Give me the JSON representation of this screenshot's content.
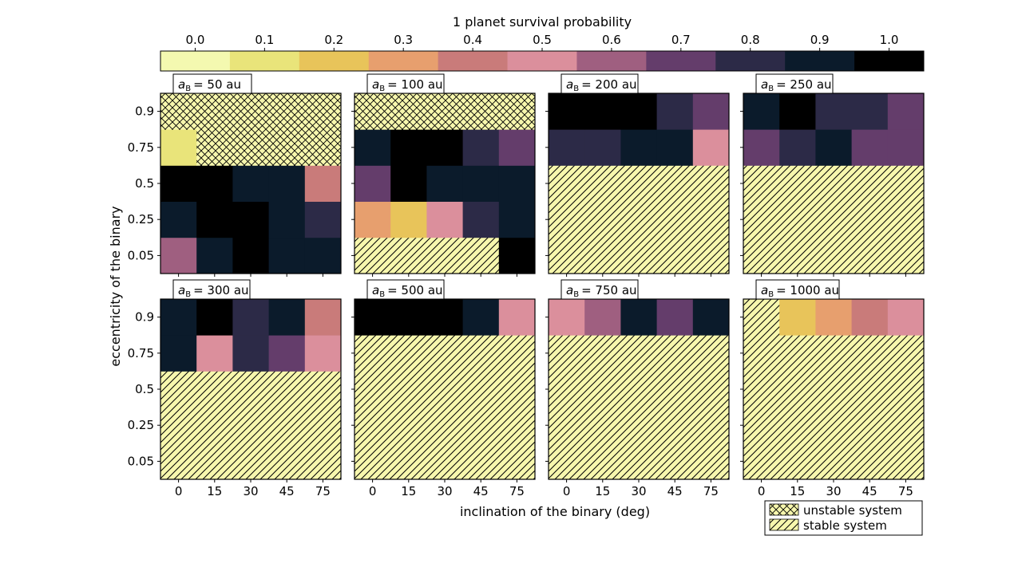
{
  "chart_data": {
    "type": "heatmap",
    "colorbar": {
      "label": "1 planet survival probability",
      "ticks": [
        "0.0",
        "0.1",
        "0.2",
        "0.3",
        "0.4",
        "0.5",
        "0.6",
        "0.7",
        "0.8",
        "0.9",
        "1.0"
      ],
      "colors": [
        "#f4f9b0",
        "#e9e47a",
        "#e8c45a",
        "#e79f6e",
        "#c97b7a",
        "#db8f9c",
        "#9f5f80",
        "#643d6b",
        "#2c2a47",
        "#0b1b2b",
        "#000000"
      ],
      "range": [
        0.0,
        1.0
      ]
    },
    "xlabel": "inclination of the binary (deg)",
    "ylabel": "eccentricity of the binary",
    "x_ticks": [
      "0",
      "15",
      "30",
      "45",
      "75"
    ],
    "y_ticks": [
      "0.05",
      "0.25",
      "0.5",
      "0.75",
      "0.9"
    ],
    "hatch_fill": "#f7f7ad",
    "legend": {
      "placement": "bottom-right",
      "entries": [
        {
          "label": "unstable system",
          "hatch": "crosshatch"
        },
        {
          "label": "stable system",
          "hatch": "diagonal"
        }
      ]
    },
    "panels_note_rows_order": "y_ticks",
    "panels": [
      {
        "title_prefix": "a",
        "title_sub": "B",
        "title_rest": "=  50 au",
        "grid": [
          [
            0.6,
            0.9,
            1.0,
            0.9,
            0.9
          ],
          [
            0.9,
            1.0,
            1.0,
            0.9,
            0.8
          ],
          [
            1.0,
            1.0,
            0.9,
            0.9,
            0.4
          ],
          [
            0.1,
            "unstable",
            "unstable",
            "unstable",
            "unstable"
          ],
          [
            "unstable",
            "unstable",
            "unstable",
            "unstable",
            "unstable"
          ]
        ]
      },
      {
        "title_prefix": "a",
        "title_sub": "B",
        "title_rest": "=  100 au",
        "grid": [
          [
            "stable",
            "stable",
            "stable",
            "stable",
            1.0
          ],
          [
            0.3,
            0.2,
            0.5,
            0.8,
            0.9
          ],
          [
            0.7,
            1.0,
            0.9,
            0.9,
            0.9
          ],
          [
            0.9,
            1.0,
            1.0,
            0.8,
            0.7
          ],
          [
            "unstable",
            "unstable",
            "unstable",
            "unstable",
            "unstable"
          ]
        ]
      },
      {
        "title_prefix": "a",
        "title_sub": "B",
        "title_rest": "=  200 au",
        "grid": [
          [
            "stable",
            "stable",
            "stable",
            "stable",
            "stable"
          ],
          [
            "stable",
            "stable",
            "stable",
            "stable",
            "stable"
          ],
          [
            "stable",
            "stable",
            "stable",
            "stable",
            "stable"
          ],
          [
            0.8,
            0.8,
            0.9,
            0.9,
            0.5
          ],
          [
            1.0,
            1.0,
            1.0,
            0.8,
            0.7
          ]
        ]
      },
      {
        "title_prefix": "a",
        "title_sub": "B",
        "title_rest": "=  250 au",
        "grid": [
          [
            "stable",
            "stable",
            "stable",
            "stable",
            "stable"
          ],
          [
            "stable",
            "stable",
            "stable",
            "stable",
            "stable"
          ],
          [
            "stable",
            "stable",
            "stable",
            "stable",
            "stable"
          ],
          [
            0.7,
            0.8,
            0.9,
            0.7,
            0.7
          ],
          [
            0.9,
            1.0,
            0.8,
            0.8,
            0.7
          ]
        ]
      },
      {
        "title_prefix": "a",
        "title_sub": "B",
        "title_rest": "=  300 au",
        "grid": [
          [
            "stable",
            "stable",
            "stable",
            "stable",
            "stable"
          ],
          [
            "stable",
            "stable",
            "stable",
            "stable",
            "stable"
          ],
          [
            "stable",
            "stable",
            "stable",
            "stable",
            "stable"
          ],
          [
            0.9,
            0.5,
            0.8,
            0.7,
            0.5
          ],
          [
            0.9,
            1.0,
            0.8,
            0.9,
            0.4
          ]
        ]
      },
      {
        "title_prefix": "a",
        "title_sub": "B",
        "title_rest": "=  500 au",
        "grid": [
          [
            "stable",
            "stable",
            "stable",
            "stable",
            "stable"
          ],
          [
            "stable",
            "stable",
            "stable",
            "stable",
            "stable"
          ],
          [
            "stable",
            "stable",
            "stable",
            "stable",
            "stable"
          ],
          [
            "stable",
            "stable",
            "stable",
            "stable",
            "stable"
          ],
          [
            1.0,
            1.0,
            1.0,
            0.9,
            0.5
          ]
        ]
      },
      {
        "title_prefix": "a",
        "title_sub": "B",
        "title_rest": "=  750 au",
        "grid": [
          [
            "stable",
            "stable",
            "stable",
            "stable",
            "stable"
          ],
          [
            "stable",
            "stable",
            "stable",
            "stable",
            "stable"
          ],
          [
            "stable",
            "stable",
            "stable",
            "stable",
            "stable"
          ],
          [
            "stable",
            "stable",
            "stable",
            "stable",
            "stable"
          ],
          [
            0.5,
            0.6,
            0.9,
            0.7,
            0.9
          ]
        ]
      },
      {
        "title_prefix": "a",
        "title_sub": "B",
        "title_rest": "=  1000 au",
        "grid": [
          [
            "stable",
            "stable",
            "stable",
            "stable",
            "stable"
          ],
          [
            "stable",
            "stable",
            "stable",
            "stable",
            "stable"
          ],
          [
            "stable",
            "stable",
            "stable",
            "stable",
            "stable"
          ],
          [
            "stable",
            "stable",
            "stable",
            "stable",
            "stable"
          ],
          [
            "stable",
            0.2,
            0.3,
            0.4,
            0.5
          ]
        ]
      }
    ]
  }
}
